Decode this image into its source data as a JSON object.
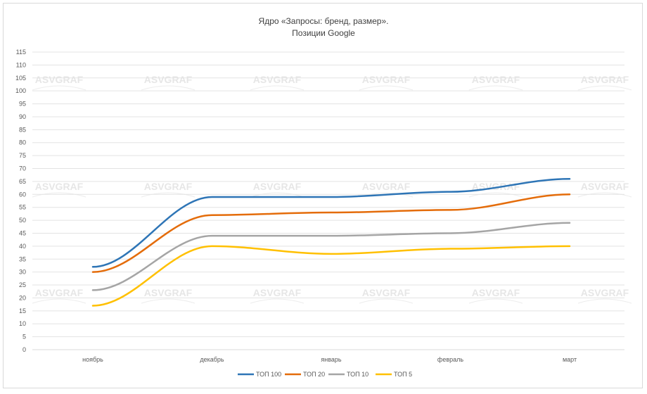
{
  "chart_data": {
    "type": "line",
    "title": "Ядро «Запросы: бренд, размер».",
    "subtitle": "Позиции Google",
    "categories": [
      "ноябрь",
      "декабрь",
      "январь",
      "февраль",
      "март"
    ],
    "ylim": [
      0,
      115
    ],
    "ytick_step": 5,
    "grid": true,
    "legend_position": "bottom",
    "watermark": "ASVGRAF",
    "series": [
      {
        "name": "ТОП 100",
        "color": "#2e75b6",
        "values": [
          32,
          59,
          59,
          61,
          66
        ]
      },
      {
        "name": "ТОП 20",
        "color": "#e46c0a",
        "values": [
          30,
          52,
          53,
          54,
          60
        ]
      },
      {
        "name": "ТОП 10",
        "color": "#a5a5a5",
        "values": [
          23,
          44,
          44,
          45,
          49
        ]
      },
      {
        "name": "ТОП 5",
        "color": "#ffc000",
        "values": [
          17,
          40,
          37,
          39,
          40
        ]
      }
    ]
  }
}
